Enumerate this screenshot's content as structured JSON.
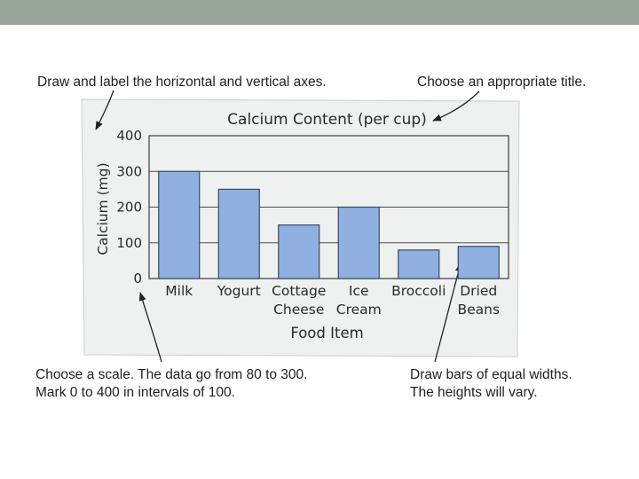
{
  "annotations": {
    "axes_note": "Draw and label the horizontal and vertical axes.",
    "title_note": "Choose an appropriate title.",
    "scale_note_line1": "Choose a scale. The data go from 80 to 300.",
    "scale_note_line2": "Mark 0 to 400 in intervals of 100.",
    "bars_note_line1": "Draw bars of equal widths.",
    "bars_note_line2": "The heights will vary."
  },
  "chart_data": {
    "type": "bar",
    "title": "Calcium Content (per cup)",
    "xlabel": "Food Item",
    "ylabel": "Calcium (mg)",
    "ylim": [
      0,
      400
    ],
    "yticks": [
      "0",
      "100",
      "200",
      "300",
      "400"
    ],
    "grid": true,
    "categories": [
      [
        "Milk"
      ],
      [
        "Yogurt"
      ],
      [
        "Cottage",
        "Cheese"
      ],
      [
        "Ice",
        "Cream"
      ],
      [
        "Broccoli"
      ],
      [
        "Dried",
        "Beans"
      ]
    ],
    "values": [
      300,
      250,
      150,
      200,
      80,
      90
    ],
    "bar_color": "#8fb0e0",
    "bar_edge": "#3a4a66",
    "paper_color": "#eef1f0"
  }
}
